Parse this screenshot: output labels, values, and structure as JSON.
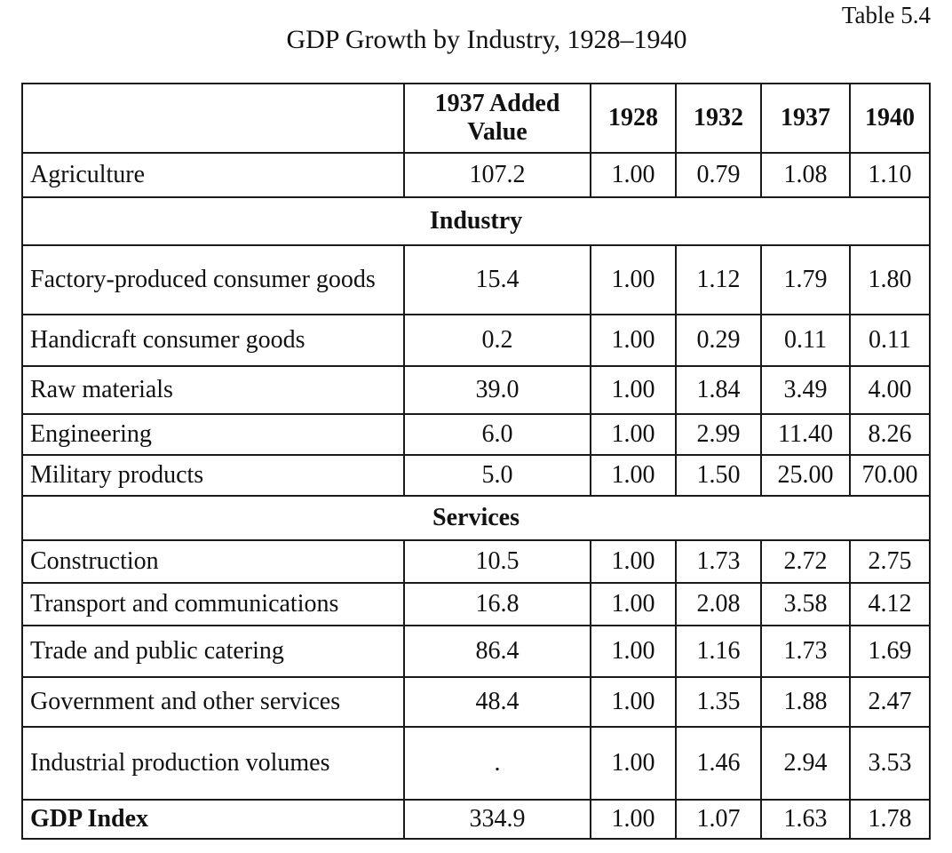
{
  "table_label": "Table 5.4",
  "title": "GDP Growth by Industry, 1928–1940",
  "columns": [
    "",
    "1937 Added Value",
    "1928",
    "1932",
    "1937",
    "1940"
  ],
  "rows": [
    {
      "label": "Agriculture",
      "added_value": "107.2",
      "v1928": "1.00",
      "v1932": "0.79",
      "v1937": "1.08",
      "v1940": "1.10"
    },
    {
      "section": "Industry"
    },
    {
      "label": "Factory-produced consumer goods",
      "added_value": "15.4",
      "v1928": "1.00",
      "v1932": "1.12",
      "v1937": "1.79",
      "v1940": "1.80"
    },
    {
      "label": "Handicraft consumer goods",
      "added_value": "0.2",
      "v1928": "1.00",
      "v1932": "0.29",
      "v1937": "0.11",
      "v1940": "0.11"
    },
    {
      "label": "Raw materials",
      "added_value": "39.0",
      "v1928": "1.00",
      "v1932": "1.84",
      "v1937": "3.49",
      "v1940": "4.00"
    },
    {
      "label": "Engineering",
      "added_value": "6.0",
      "v1928": "1.00",
      "v1932": "2.99",
      "v1937": "11.40",
      "v1940": "8.26"
    },
    {
      "label": "Military products",
      "added_value": "5.0",
      "v1928": "1.00",
      "v1932": "1.50",
      "v1937": "25.00",
      "v1940": "70.00"
    },
    {
      "section": "Services"
    },
    {
      "label": "Construction",
      "added_value": "10.5",
      "v1928": "1.00",
      "v1932": "1.73",
      "v1937": "2.72",
      "v1940": "2.75"
    },
    {
      "label": "Transport and communications",
      "added_value": "16.8",
      "v1928": "1.00",
      "v1932": "2.08",
      "v1937": "3.58",
      "v1940": "4.12"
    },
    {
      "label": "Trade and public catering",
      "added_value": "86.4",
      "v1928": "1.00",
      "v1932": "1.16",
      "v1937": "1.73",
      "v1940": "1.69"
    },
    {
      "label": "Government and other services",
      "added_value": "48.4",
      "v1928": "1.00",
      "v1932": "1.35",
      "v1937": "1.88",
      "v1940": "2.47"
    },
    {
      "label": "Industrial production volumes",
      "added_value": ".",
      "v1928": "1.00",
      "v1932": "1.46",
      "v1937": "2.94",
      "v1940": "3.53"
    },
    {
      "label": "GDP Index",
      "added_value": "334.9",
      "v1928": "1.00",
      "v1932": "1.07",
      "v1937": "1.63",
      "v1940": "1.78",
      "bold_label": true
    }
  ]
}
